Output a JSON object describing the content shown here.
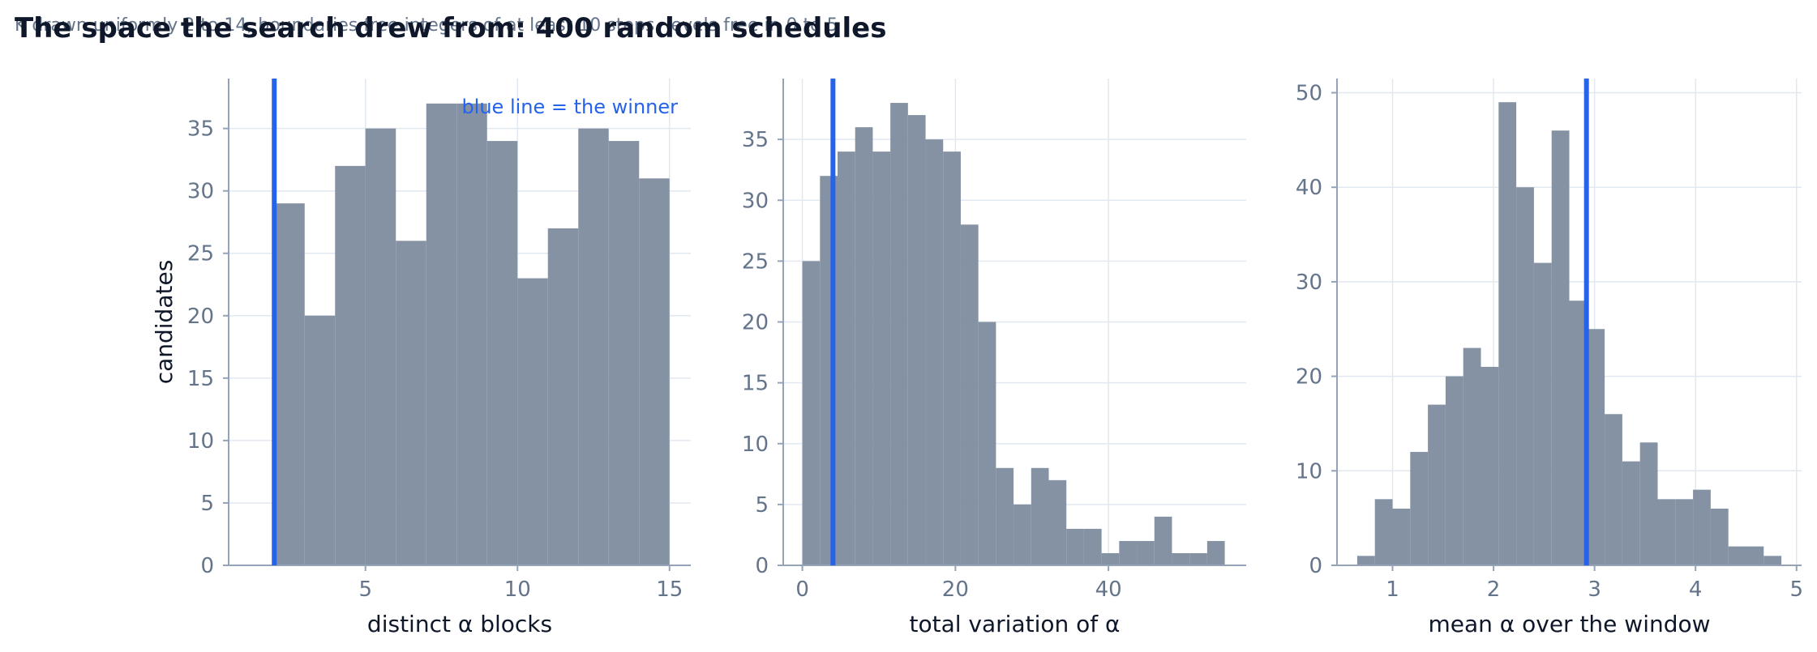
{
  "page": {
    "title": "The space the search drew from: 400 random schedules",
    "subtitle": "K drawn uniformly 2 to 14, boundaries free integers of at least 10 steps, levels free in 0 to 5"
  },
  "colors": {
    "bars": "#8390a2",
    "winner": "#2563eb",
    "grid": "#e2e8f0",
    "axis": "#94a3b8",
    "tick_text": "#64748b"
  },
  "chart_data": [
    {
      "type": "bar",
      "xlabel": "distinct α blocks",
      "ylabel": "candidates",
      "xlim": [
        0.5,
        15.7
      ],
      "ylim": [
        0,
        39
      ],
      "xticks": [
        5,
        10,
        15
      ],
      "yticks": [
        0,
        5,
        10,
        15,
        20,
        25,
        30,
        35
      ],
      "bins": [
        {
          "x0": 2,
          "x1": 3,
          "count": 29
        },
        {
          "x0": 3,
          "x1": 4,
          "count": 20
        },
        {
          "x0": 4,
          "x1": 5,
          "count": 32
        },
        {
          "x0": 5,
          "x1": 6,
          "count": 35
        },
        {
          "x0": 6,
          "x1": 7,
          "count": 26
        },
        {
          "x0": 7,
          "x1": 8,
          "count": 37
        },
        {
          "x0": 8,
          "x1": 9,
          "count": 37
        },
        {
          "x0": 9,
          "x1": 10,
          "count": 34
        },
        {
          "x0": 10,
          "x1": 11,
          "count": 23
        },
        {
          "x0": 11,
          "x1": 12,
          "count": 27
        },
        {
          "x0": 12,
          "x1": 13,
          "count": 35
        },
        {
          "x0": 13,
          "x1": 14,
          "count": 34
        },
        {
          "x0": 14,
          "x1": 15,
          "count": 31
        }
      ],
      "winner": 2,
      "annotation": "blue line = the winner"
    },
    {
      "type": "bar",
      "xlabel": "total variation of α",
      "ylabel": "",
      "xlim": [
        -2.5,
        58
      ],
      "ylim": [
        0,
        40
      ],
      "xticks": [
        0,
        20,
        40
      ],
      "yticks": [
        0,
        5,
        10,
        15,
        20,
        25,
        30,
        35
      ],
      "bins": [
        {
          "x0": 0,
          "x1": 2.3,
          "count": 25
        },
        {
          "x0": 2.3,
          "x1": 4.6,
          "count": 32
        },
        {
          "x0": 4.6,
          "x1": 6.9,
          "count": 34
        },
        {
          "x0": 6.9,
          "x1": 9.2,
          "count": 36
        },
        {
          "x0": 9.2,
          "x1": 11.5,
          "count": 34
        },
        {
          "x0": 11.5,
          "x1": 13.8,
          "count": 38
        },
        {
          "x0": 13.8,
          "x1": 16.1,
          "count": 37
        },
        {
          "x0": 16.1,
          "x1": 18.4,
          "count": 35
        },
        {
          "x0": 18.4,
          "x1": 20.7,
          "count": 34
        },
        {
          "x0": 20.7,
          "x1": 23.0,
          "count": 28
        },
        {
          "x0": 23.0,
          "x1": 25.3,
          "count": 20
        },
        {
          "x0": 25.3,
          "x1": 27.6,
          "count": 8
        },
        {
          "x0": 27.6,
          "x1": 29.9,
          "count": 5
        },
        {
          "x0": 29.9,
          "x1": 32.2,
          "count": 8
        },
        {
          "x0": 32.2,
          "x1": 34.5,
          "count": 7
        },
        {
          "x0": 34.5,
          "x1": 36.8,
          "count": 3
        },
        {
          "x0": 36.8,
          "x1": 39.1,
          "count": 3
        },
        {
          "x0": 39.1,
          "x1": 41.4,
          "count": 1
        },
        {
          "x0": 41.4,
          "x1": 43.7,
          "count": 2
        },
        {
          "x0": 43.7,
          "x1": 46.0,
          "count": 2
        },
        {
          "x0": 46.0,
          "x1": 48.3,
          "count": 4
        },
        {
          "x0": 48.3,
          "x1": 50.6,
          "count": 1
        },
        {
          "x0": 50.6,
          "x1": 52.9,
          "count": 1
        },
        {
          "x0": 52.9,
          "x1": 55.2,
          "count": 2
        }
      ],
      "winner": 4
    },
    {
      "type": "bar",
      "xlabel": "mean α over the window",
      "ylabel": "",
      "xlim": [
        0.45,
        5.05
      ],
      "ylim": [
        0,
        51.5
      ],
      "xticks": [
        1,
        2,
        3,
        4,
        5
      ],
      "yticks": [
        0,
        10,
        20,
        30,
        40,
        50
      ],
      "bins": [
        {
          "x0": 0.65,
          "x1": 0.825,
          "count": 1
        },
        {
          "x0": 0.825,
          "x1": 1.0,
          "count": 7
        },
        {
          "x0": 1.0,
          "x1": 1.175,
          "count": 6
        },
        {
          "x0": 1.175,
          "x1": 1.35,
          "count": 12
        },
        {
          "x0": 1.35,
          "x1": 1.525,
          "count": 17
        },
        {
          "x0": 1.525,
          "x1": 1.7,
          "count": 20
        },
        {
          "x0": 1.7,
          "x1": 1.875,
          "count": 23
        },
        {
          "x0": 1.875,
          "x1": 2.05,
          "count": 21
        },
        {
          "x0": 2.05,
          "x1": 2.225,
          "count": 49
        },
        {
          "x0": 2.225,
          "x1": 2.4,
          "count": 40
        },
        {
          "x0": 2.4,
          "x1": 2.575,
          "count": 32
        },
        {
          "x0": 2.575,
          "x1": 2.75,
          "count": 46
        },
        {
          "x0": 2.75,
          "x1": 2.925,
          "count": 28
        },
        {
          "x0": 2.925,
          "x1": 3.1,
          "count": 25
        },
        {
          "x0": 3.1,
          "x1": 3.275,
          "count": 16
        },
        {
          "x0": 3.275,
          "x1": 3.45,
          "count": 11
        },
        {
          "x0": 3.45,
          "x1": 3.625,
          "count": 13
        },
        {
          "x0": 3.625,
          "x1": 3.8,
          "count": 7
        },
        {
          "x0": 3.8,
          "x1": 3.975,
          "count": 7
        },
        {
          "x0": 3.975,
          "x1": 4.15,
          "count": 8
        },
        {
          "x0": 4.15,
          "x1": 4.325,
          "count": 6
        },
        {
          "x0": 4.325,
          "x1": 4.5,
          "count": 2
        },
        {
          "x0": 4.5,
          "x1": 4.675,
          "count": 2
        },
        {
          "x0": 4.675,
          "x1": 4.85,
          "count": 1
        }
      ],
      "winner": 2.92
    }
  ]
}
